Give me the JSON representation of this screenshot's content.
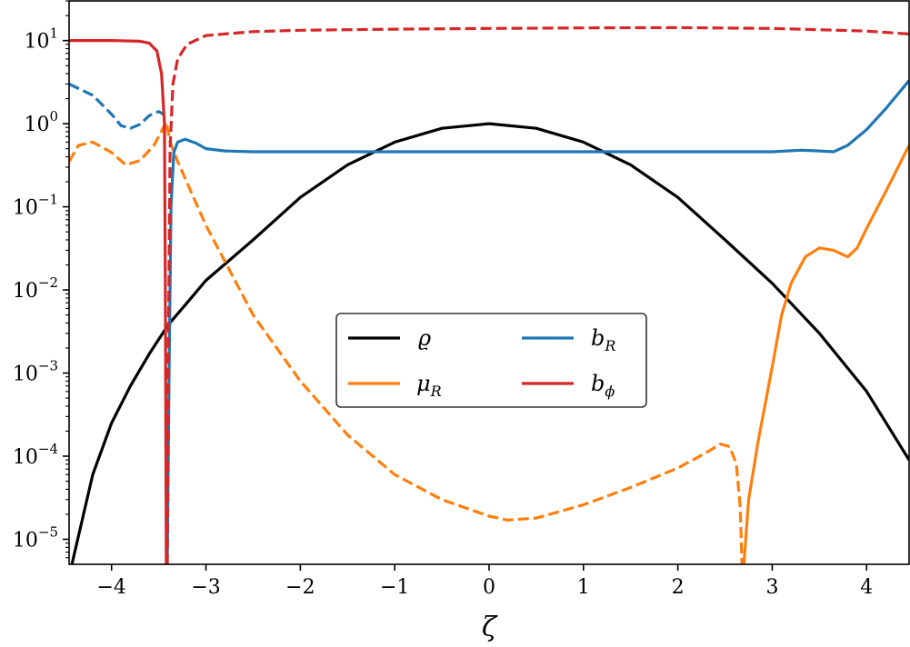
{
  "chart_data": {
    "type": "line",
    "xlabel": "ζ",
    "ylabel": "",
    "xlim": [
      -4.45,
      4.45
    ],
    "ylim": [
      5e-06,
      30
    ],
    "yscale": "log",
    "grid": false,
    "legend_position": "center",
    "x_ticks": [
      {
        "value": -4,
        "label": "−4"
      },
      {
        "value": -3,
        "label": "−3"
      },
      {
        "value": -2,
        "label": "−2"
      },
      {
        "value": -1,
        "label": "−1"
      },
      {
        "value": 0,
        "label": "0"
      },
      {
        "value": 1,
        "label": "1"
      },
      {
        "value": 2,
        "label": "2"
      },
      {
        "value": 3,
        "label": "3"
      },
      {
        "value": 4,
        "label": "4"
      }
    ],
    "y_ticks": [
      {
        "value": 10,
        "base": "10",
        "exp": "1"
      },
      {
        "value": 1,
        "base": "10",
        "exp": "0"
      },
      {
        "value": 0.1,
        "base": "10",
        "exp": "−1"
      },
      {
        "value": 0.01,
        "base": "10",
        "exp": "−2"
      },
      {
        "value": 0.001,
        "base": "10",
        "exp": "−3"
      },
      {
        "value": 0.0001,
        "base": "10",
        "exp": "−4"
      },
      {
        "value": 1e-05,
        "base": "10",
        "exp": "−5"
      }
    ],
    "series": [
      {
        "name_main": "ϱ",
        "name_sub": "",
        "color": "#000000",
        "segments": [
          {
            "dash": false,
            "points": [
              [
                -4.42,
                5e-06
              ],
              [
                -4.2,
                6e-05
              ],
              [
                -4.0,
                0.00025
              ],
              [
                -3.8,
                0.0007
              ],
              [
                -3.6,
                0.0017
              ],
              [
                -3.4,
                0.0038
              ],
              [
                -3.2,
                0.007
              ],
              [
                -3.0,
                0.013
              ],
              [
                -2.5,
                0.04
              ],
              [
                -2.0,
                0.13
              ],
              [
                -1.5,
                0.32
              ],
              [
                -1.0,
                0.6
              ],
              [
                -0.5,
                0.88
              ],
              [
                0.0,
                1.0
              ],
              [
                0.5,
                0.88
              ],
              [
                1.0,
                0.6
              ],
              [
                1.5,
                0.32
              ],
              [
                2.0,
                0.13
              ],
              [
                2.5,
                0.04
              ],
              [
                3.0,
                0.012
              ],
              [
                3.5,
                0.003
              ],
              [
                4.0,
                0.0006
              ],
              [
                4.45,
                9e-05
              ]
            ]
          }
        ]
      },
      {
        "name_main": "μ",
        "name_sub": "R",
        "color": "#ff7f0e",
        "segments": [
          {
            "dash": true,
            "points": [
              [
                -4.45,
                0.35
              ],
              [
                -4.35,
                0.55
              ],
              [
                -4.2,
                0.6
              ],
              [
                -4.0,
                0.45
              ],
              [
                -3.85,
                0.32
              ],
              [
                -3.7,
                0.36
              ],
              [
                -3.55,
                0.55
              ],
              [
                -3.45,
                0.9
              ],
              [
                -3.42,
                1.05
              ],
              [
                -3.38,
                0.6
              ],
              [
                -3.3,
                0.35
              ],
              [
                -3.0,
                0.06
              ],
              [
                -2.5,
                0.005
              ],
              [
                -2.0,
                0.0008
              ],
              [
                -1.5,
                0.00018
              ],
              [
                -1.0,
                6e-05
              ],
              [
                -0.5,
                3e-05
              ],
              [
                0.0,
                1.9e-05
              ],
              [
                0.2,
                1.7e-05
              ],
              [
                0.5,
                1.8e-05
              ],
              [
                1.0,
                2.6e-05
              ],
              [
                1.5,
                4.2e-05
              ],
              [
                2.0,
                7.2e-05
              ],
              [
                2.3,
                0.00011
              ],
              [
                2.45,
                0.00014
              ],
              [
                2.55,
                0.00013
              ],
              [
                2.62,
                8e-05
              ],
              [
                2.66,
                2.5e-05
              ],
              [
                2.68,
                5e-06
              ]
            ]
          },
          {
            "dash": false,
            "points": [
              [
                2.7,
                5e-06
              ],
              [
                2.75,
                3e-05
              ],
              [
                2.85,
                0.00015
              ],
              [
                3.0,
                0.0012
              ],
              [
                3.1,
                0.005
              ],
              [
                3.2,
                0.012
              ],
              [
                3.35,
                0.025
              ],
              [
                3.5,
                0.032
              ],
              [
                3.65,
                0.03
              ],
              [
                3.8,
                0.025
              ],
              [
                3.9,
                0.032
              ],
              [
                4.0,
                0.055
              ],
              [
                4.2,
                0.15
              ],
              [
                4.45,
                0.55
              ]
            ]
          }
        ]
      },
      {
        "name_main": "b",
        "name_sub": "R",
        "color": "#1f77b4",
        "segments": [
          {
            "dash": true,
            "points": [
              [
                -4.45,
                3.0
              ],
              [
                -4.2,
                2.2
              ],
              [
                -4.0,
                1.3
              ],
              [
                -3.9,
                0.95
              ],
              [
                -3.8,
                0.88
              ],
              [
                -3.7,
                0.98
              ],
              [
                -3.6,
                1.25
              ],
              [
                -3.5,
                1.4
              ],
              [
                -3.45,
                1.3
              ]
            ]
          },
          {
            "dash": false,
            "points": [
              [
                -3.41,
                5e-06
              ],
              [
                -3.39,
                0.001
              ],
              [
                -3.37,
                0.1
              ],
              [
                -3.34,
                0.45
              ],
              [
                -3.3,
                0.6
              ],
              [
                -3.22,
                0.65
              ],
              [
                -3.1,
                0.58
              ],
              [
                -3.0,
                0.5
              ],
              [
                -2.8,
                0.47
              ],
              [
                -2.5,
                0.46
              ],
              [
                -2.0,
                0.46
              ],
              [
                0.0,
                0.46
              ],
              [
                2.0,
                0.46
              ],
              [
                3.0,
                0.46
              ],
              [
                3.3,
                0.48
              ],
              [
                3.5,
                0.47
              ],
              [
                3.65,
                0.46
              ],
              [
                3.8,
                0.55
              ],
              [
                4.0,
                0.85
              ],
              [
                4.2,
                1.5
              ],
              [
                4.45,
                3.3
              ]
            ]
          }
        ]
      },
      {
        "name_main": "b",
        "name_sub": "ϕ",
        "color": "#d62728",
        "segments": [
          {
            "dash": false,
            "points": [
              [
                -4.45,
                10.0
              ],
              [
                -4.0,
                10.0
              ],
              [
                -3.7,
                9.8
              ],
              [
                -3.6,
                9.3
              ],
              [
                -3.52,
                7.5
              ],
              [
                -3.47,
                4.0
              ],
              [
                -3.44,
                1.0
              ],
              [
                -3.43,
                0.01
              ],
              [
                -3.42,
                5e-06
              ]
            ]
          },
          {
            "dash": true,
            "points": [
              [
                -3.41,
                5e-06
              ],
              [
                -3.4,
                0.001
              ],
              [
                -3.38,
                0.5
              ],
              [
                -3.35,
                3.0
              ],
              [
                -3.3,
                6.0
              ],
              [
                -3.2,
                9.0
              ],
              [
                -3.0,
                11.5
              ],
              [
                -2.5,
                12.8
              ],
              [
                -2.0,
                13.3
              ],
              [
                -1.0,
                13.7
              ],
              [
                0.0,
                14.0
              ],
              [
                1.0,
                14.2
              ],
              [
                2.0,
                14.3
              ],
              [
                3.0,
                14.0
              ],
              [
                3.5,
                13.5
              ],
              [
                4.0,
                13.0
              ],
              [
                4.45,
                12.0
              ]
            ]
          }
        ]
      }
    ]
  }
}
